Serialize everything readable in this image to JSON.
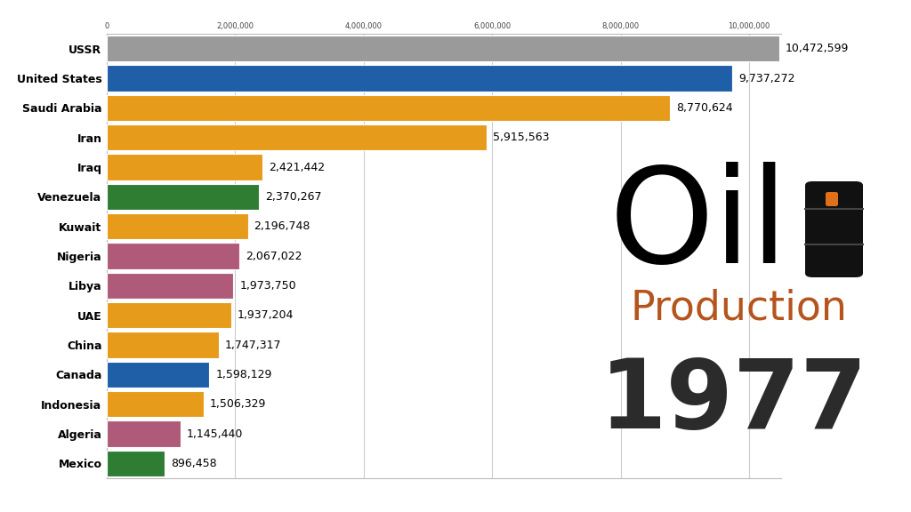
{
  "chart_data": {
    "type": "bar",
    "orientation": "horizontal",
    "title": "Oil",
    "subtitle": "Production",
    "annotations": [
      "1977"
    ],
    "categories": [
      "USSR",
      "United States",
      "Saudi Arabia",
      "Iran",
      "Iraq",
      "Venezuela",
      "Kuwait",
      "Nigeria",
      "Libya",
      "UAE",
      "China",
      "Canada",
      "Indonesia",
      "Algeria",
      "Mexico"
    ],
    "values": [
      10472599,
      9737272,
      8770624,
      5915563,
      2421442,
      2370267,
      2196748,
      2067022,
      1973750,
      1937204,
      1747317,
      1598129,
      1506329,
      1145440,
      896458
    ],
    "value_labels": [
      "10,472,599",
      "9,737,272",
      "8,770,624",
      "5,915,563",
      "2,421,442",
      "2,370,267",
      "2,196,748",
      "2,067,022",
      "1,973,750",
      "1,937,204",
      "1,747,317",
      "1,598,129",
      "1,506,329",
      "1,145,440",
      "896,458"
    ],
    "colors": [
      "#9a9a9a",
      "#1f5fa8",
      "#e69b1a",
      "#e69b1a",
      "#e69b1a",
      "#2e7d32",
      "#e69b1a",
      "#b05a7a",
      "#b05a7a",
      "#e69b1a",
      "#e69b1a",
      "#1f5fa8",
      "#e69b1a",
      "#b05a7a",
      "#2e7d32"
    ],
    "data_labels": true,
    "xlim": [
      0,
      10500000
    ],
    "xticks": [
      0,
      {
        "value": 2000000,
        "label": "2,000,000"
      },
      {
        "value": 4000000,
        "label": "4,000,000"
      },
      {
        "value": 6000000,
        "label": "6,000,000"
      },
      {
        "value": 8000000,
        "label": "8,000,000"
      },
      {
        "value": 10000000,
        "label": "10,000,000"
      }
    ],
    "grid": true
  }
}
